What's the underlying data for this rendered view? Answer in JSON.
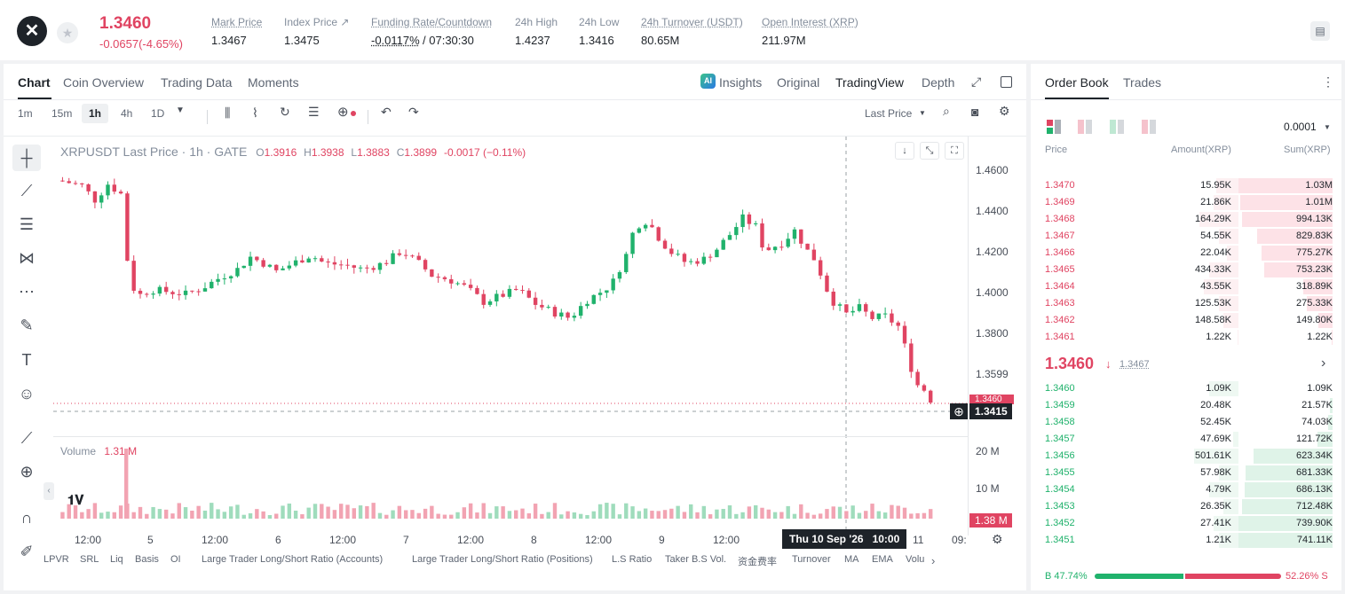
{
  "header": {
    "logo_glyph": "✕",
    "favorite_icon": "star-icon",
    "price": "1.3460",
    "change": "-0.0657(-4.65%)",
    "stats": [
      {
        "label": "Mark Price",
        "value": "1.3467"
      },
      {
        "label": "Index Price ↗",
        "value": "1.3475"
      },
      {
        "label": "Funding Rate/Countdown",
        "value": "-0.0117%",
        "value2": "/ 07:30:30"
      },
      {
        "label": "24h High",
        "value": "1.4237"
      },
      {
        "label": "24h Low",
        "value": "1.3416"
      },
      {
        "label": "24h Turnover (USDT)",
        "value": "80.65M"
      },
      {
        "label": "Open Interest (XRP)",
        "value": "211.97M"
      }
    ]
  },
  "chart_tabs": [
    "Chart",
    "Coin Overview",
    "Trading Data",
    "Moments"
  ],
  "view_tabs": [
    "Insights",
    "Original",
    "TradingView",
    "Depth"
  ],
  "intervals": [
    "1m",
    "15m",
    "1h",
    "4h",
    "1D"
  ],
  "price_type": "Last Price",
  "ohlc": {
    "symbol": "XRPUSDT Last Price · 1h · GATE",
    "o": "O",
    "ov": "1.3916",
    "h": "H",
    "hv": "1.3938",
    "l": "L",
    "lv": "1.3883",
    "c": "C",
    "cv": "1.3899",
    "chg": "-0.0017 (−0.11%)"
  },
  "price_axis": [
    "1.4600",
    "1.4400",
    "1.4200",
    "1.4000",
    "1.3800",
    "1.3599"
  ],
  "current_price_tag": "1.3460",
  "crosshair_price": "1.3415",
  "volume": {
    "label": "Volume",
    "value": "1.31 M",
    "axis": [
      "20 M",
      "10 M"
    ],
    "tag": "1.38 M"
  },
  "time_axis": [
    "12:00",
    "5",
    "12:00",
    "6",
    "12:00",
    "7",
    "12:00",
    "8",
    "12:00",
    "9",
    "12:00",
    "11",
    "09:"
  ],
  "crosshair_time": "Thu 10 Sep '26",
  "crosshair_hour": "10:00",
  "indicators": [
    "LPVR",
    "SRL",
    "Liq",
    "Basis",
    "OI",
    "Large Trader Long/Short Ratio (Accounts)",
    "Large Trader Long/Short Ratio (Positions)",
    "L.S Ratio",
    "Taker B.S Vol.",
    "资金费率",
    "Turnover",
    "MA",
    "EMA",
    "Volu"
  ],
  "orderbook": {
    "tabs": [
      "Order Book",
      "Trades"
    ],
    "precision": "0.0001",
    "headers": [
      "Price",
      "Amount(XRP)",
      "Sum(XRP)"
    ],
    "asks": [
      {
        "price": "1.3470",
        "amount": "15.95K",
        "sum": "1.03M",
        "amt_fill": 0.23,
        "sum_fill": 1.0
      },
      {
        "price": "1.3469",
        "amount": "21.86K",
        "sum": "1.01M",
        "amt_fill": 0.25,
        "sum_fill": 0.98
      },
      {
        "price": "1.3468",
        "amount": "164.29K",
        "sum": "994.13K",
        "amt_fill": 0.4,
        "sum_fill": 0.96
      },
      {
        "price": "1.3467",
        "amount": "54.55K",
        "sum": "829.83K",
        "amt_fill": 0.2,
        "sum_fill": 0.8
      },
      {
        "price": "1.3466",
        "amount": "22.04K",
        "sum": "775.27K",
        "amt_fill": 0.12,
        "sum_fill": 0.75
      },
      {
        "price": "1.3465",
        "amount": "434.33K",
        "sum": "753.23K",
        "amt_fill": 0.3,
        "sum_fill": 0.73
      },
      {
        "price": "1.3464",
        "amount": "43.55K",
        "sum": "318.89K",
        "amt_fill": 0.35,
        "sum_fill": 0.31
      },
      {
        "price": "1.3463",
        "amount": "125.53K",
        "sum": "275.33K",
        "amt_fill": 0.2,
        "sum_fill": 0.27
      },
      {
        "price": "1.3462",
        "amount": "148.58K",
        "sum": "149.80K",
        "amt_fill": 0.15,
        "sum_fill": 0.15
      },
      {
        "price": "1.3461",
        "amount": "1.22K",
        "sum": "1.22K",
        "amt_fill": 0.01,
        "sum_fill": 0.01
      }
    ],
    "last_price": "1.3460",
    "last_arrow": "↓",
    "mark_price": "1.3467",
    "bids": [
      {
        "price": "1.3460",
        "amount": "1.09K",
        "sum": "1.09K",
        "amt_fill": 0.3,
        "sum_fill": 0.0
      },
      {
        "price": "1.3459",
        "amount": "20.48K",
        "sum": "21.57K",
        "amt_fill": 0.0,
        "sum_fill": 0.03
      },
      {
        "price": "1.3458",
        "amount": "52.45K",
        "sum": "74.03K",
        "amt_fill": 0.0,
        "sum_fill": 0.05
      },
      {
        "price": "1.3457",
        "amount": "47.69K",
        "sum": "121.72K",
        "amt_fill": 0.05,
        "sum_fill": 0.16
      },
      {
        "price": "1.3456",
        "amount": "501.61K",
        "sum": "623.34K",
        "amt_fill": 0.45,
        "sum_fill": 0.84
      },
      {
        "price": "1.3455",
        "amount": "57.98K",
        "sum": "681.33K",
        "amt_fill": 0.2,
        "sum_fill": 0.92
      },
      {
        "price": "1.3454",
        "amount": "4.79K",
        "sum": "686.13K",
        "amt_fill": 0.3,
        "sum_fill": 0.93
      },
      {
        "price": "1.3453",
        "amount": "26.35K",
        "sum": "712.48K",
        "amt_fill": 0.15,
        "sum_fill": 0.96
      },
      {
        "price": "1.3452",
        "amount": "27.41K",
        "sum": "739.90K",
        "amt_fill": 0.25,
        "sum_fill": 1.0
      },
      {
        "price": "1.3451",
        "amount": "1.21K",
        "sum": "741.11K",
        "amt_fill": 0.2,
        "sum_fill": 1.0
      }
    ],
    "buy_ratio": "B 47.74%",
    "sell_ratio": "52.26% S",
    "buy_fraction": 0.4774
  },
  "colors": {
    "up": "#20b26c",
    "down": "#e04462",
    "text": "#1e2329",
    "muted": "#848e9c"
  }
}
